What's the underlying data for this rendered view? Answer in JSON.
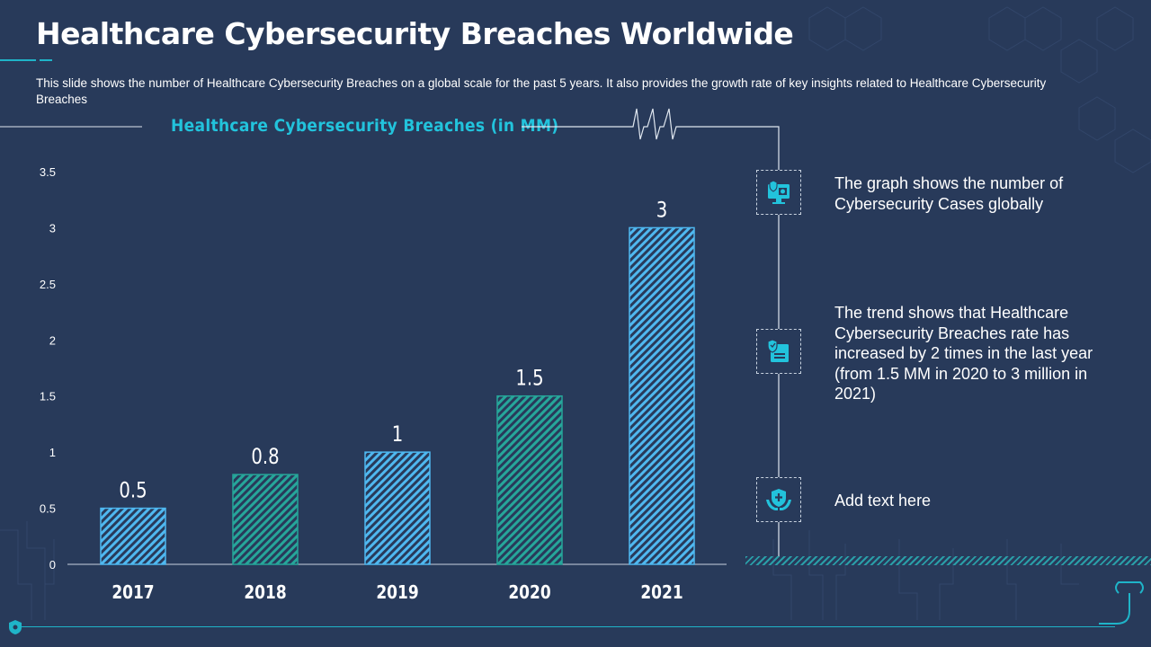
{
  "header": {
    "title": "Healthcare Cybersecurity Breaches Worldwide",
    "subtitle": "This slide shows the number of Healthcare Cybersecurity Breaches on a global scale for the past 5 years. It also provides the growth rate of key insights related to Healthcare Cybersecurity Breaches"
  },
  "chart_data": {
    "type": "bar",
    "title": "Healthcare  Cybersecurity  Breaches  (in MM)",
    "categories": [
      "2017",
      "2018",
      "2019",
      "2020",
      "2021"
    ],
    "values": [
      0.5,
      0.8,
      1,
      1.5,
      3
    ],
    "value_labels": [
      "0.5",
      "0.8",
      "1",
      "1.5",
      "3"
    ],
    "yticks": [
      "0",
      "0.5",
      "1",
      "1.5",
      "2",
      "2.5",
      "3",
      "3.5"
    ],
    "ylim": [
      0,
      3.5
    ],
    "xlabel": "",
    "ylabel": "",
    "colors": [
      "#4fb8f0",
      "#26a69a",
      "#4fb8f0",
      "#26a69a",
      "#4fb8f0"
    ]
  },
  "insights": [
    {
      "icon": "monitor-shield-icon",
      "text": "The graph shows the number of Cybersecurity Cases globally"
    },
    {
      "icon": "document-shield-icon",
      "text": "The trend shows that Healthcare Cybersecurity Breaches rate has increased by 2 times in the last year (from 1.5 MM in 2020 to 3 million in 2021)"
    },
    {
      "icon": "hands-shield-icon",
      "text": "Add text here"
    }
  ],
  "theme": {
    "background": "#283a5a",
    "accent": "#22c3dc"
  }
}
